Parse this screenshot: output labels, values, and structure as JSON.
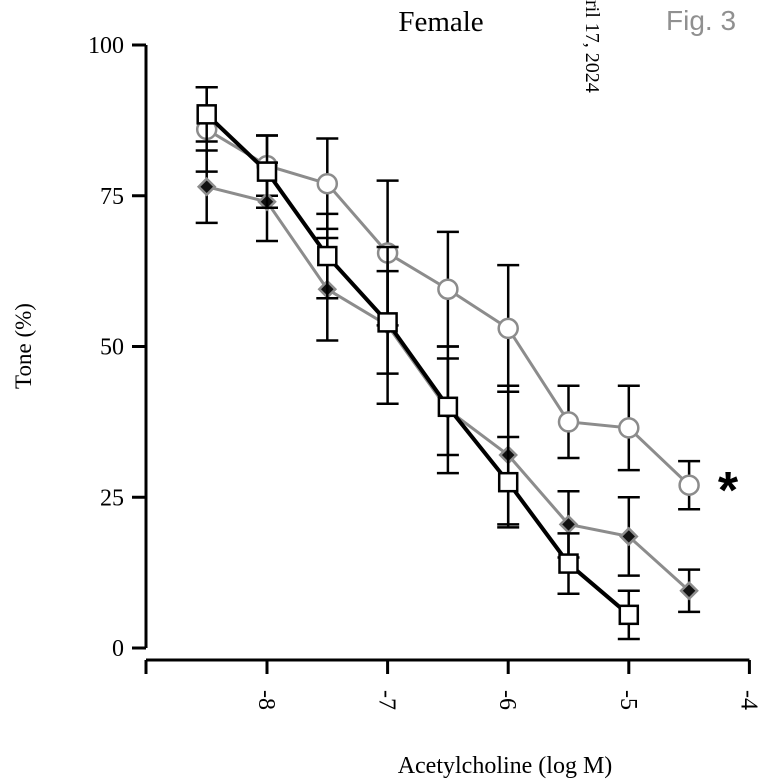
{
  "chart_data": {
    "type": "line",
    "title": "Female",
    "figure_label": "Fig. 3",
    "margin_text": "ril 17, 2024",
    "xlabel": "Acetylcholine (log M)",
    "ylabel": "Tone (%)",
    "xlim": [
      -8.5,
      -4
    ],
    "ylim": [
      0,
      100
    ],
    "x_ticks": [
      -8,
      -7,
      -6,
      -5,
      -4
    ],
    "x_tick_labels": [
      "-8",
      "-7",
      "-6",
      "-5",
      "-4"
    ],
    "y_ticks": [
      0,
      25,
      50,
      75,
      100
    ],
    "y_tick_labels": [
      "0",
      "25",
      "50",
      "75",
      "100"
    ],
    "grid": false,
    "significance_marker": "*",
    "series": [
      {
        "marker": "open-circle",
        "color": "#8c8c8c",
        "x": [
          -8.5,
          -8,
          -7.5,
          -7,
          -6.5,
          -6,
          -5.5,
          -5,
          -4.5
        ],
        "values": [
          86,
          80,
          77,
          65.5,
          59.5,
          53,
          37.5,
          36.5,
          27
        ],
        "error": [
          7,
          5,
          7.5,
          12,
          9.5,
          10.5,
          6,
          7,
          4
        ]
      },
      {
        "marker": "filled-diamond",
        "color": "#8c8c8c",
        "x": [
          -8.5,
          -8,
          -7.5,
          -7,
          -6.5,
          -6,
          -5.5,
          -5,
          -4.5
        ],
        "values": [
          76.5,
          74,
          59.5,
          53.5,
          39.5,
          32,
          20.5,
          18.5,
          9.5
        ],
        "error": [
          6,
          6.5,
          8.5,
          13,
          10.5,
          11.5,
          5.5,
          6.5,
          3.5
        ]
      },
      {
        "marker": "open-square",
        "color": "#000000",
        "x": [
          -8.5,
          -8,
          -7.5,
          -7,
          -6.5,
          -6,
          -5.5,
          -5
        ],
        "values": [
          88.5,
          79,
          65,
          54,
          40,
          27.5,
          14,
          5.5
        ],
        "error": [
          4.5,
          6,
          7,
          8.5,
          8,
          7.5,
          5,
          4
        ]
      }
    ]
  }
}
